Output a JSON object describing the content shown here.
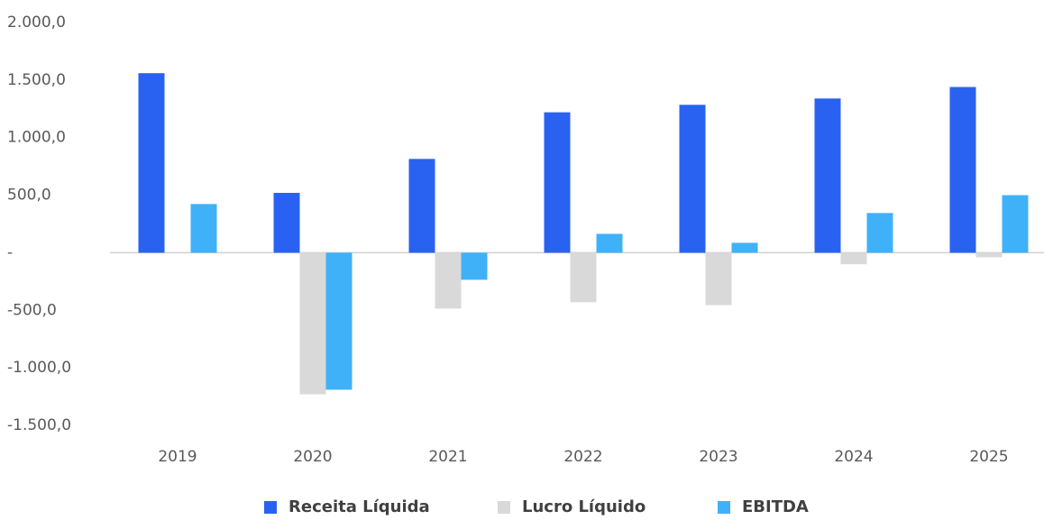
{
  "chart_data": {
    "type": "bar",
    "categories": [
      "2019",
      "2020",
      "2021",
      "2022",
      "2023",
      "2024",
      "2025"
    ],
    "series": [
      {
        "name": "Receita Líquida",
        "color": "#2962f0",
        "values": [
          1560,
          520,
          815,
          1220,
          1285,
          1340,
          1440
        ]
      },
      {
        "name": "Lucro Líquido",
        "color": "#d9d9d9",
        "values": [
          0,
          -1230,
          -485,
          -430,
          -455,
          -100,
          -40
        ]
      },
      {
        "name": "EBITDA",
        "color": "#3fb1f8",
        "values": [
          423,
          -1190,
          -235,
          164,
          86,
          345,
          500
        ]
      }
    ],
    "ylim": [
      -1500,
      2000
    ],
    "yticks": [
      {
        "value": -1500,
        "label": "-1.500,0"
      },
      {
        "value": -1000,
        "label": "-1.000,0"
      },
      {
        "value": -500,
        "label": "-500,0"
      },
      {
        "value": 0,
        "label": "-"
      },
      {
        "value": 500,
        "label": "500,0"
      },
      {
        "value": 1000,
        "label": "1.000,0"
      },
      {
        "value": 1500,
        "label": "1.500,0"
      },
      {
        "value": 2000,
        "label": "2.000,0"
      }
    ],
    "grid": false,
    "legend": "bottom"
  }
}
